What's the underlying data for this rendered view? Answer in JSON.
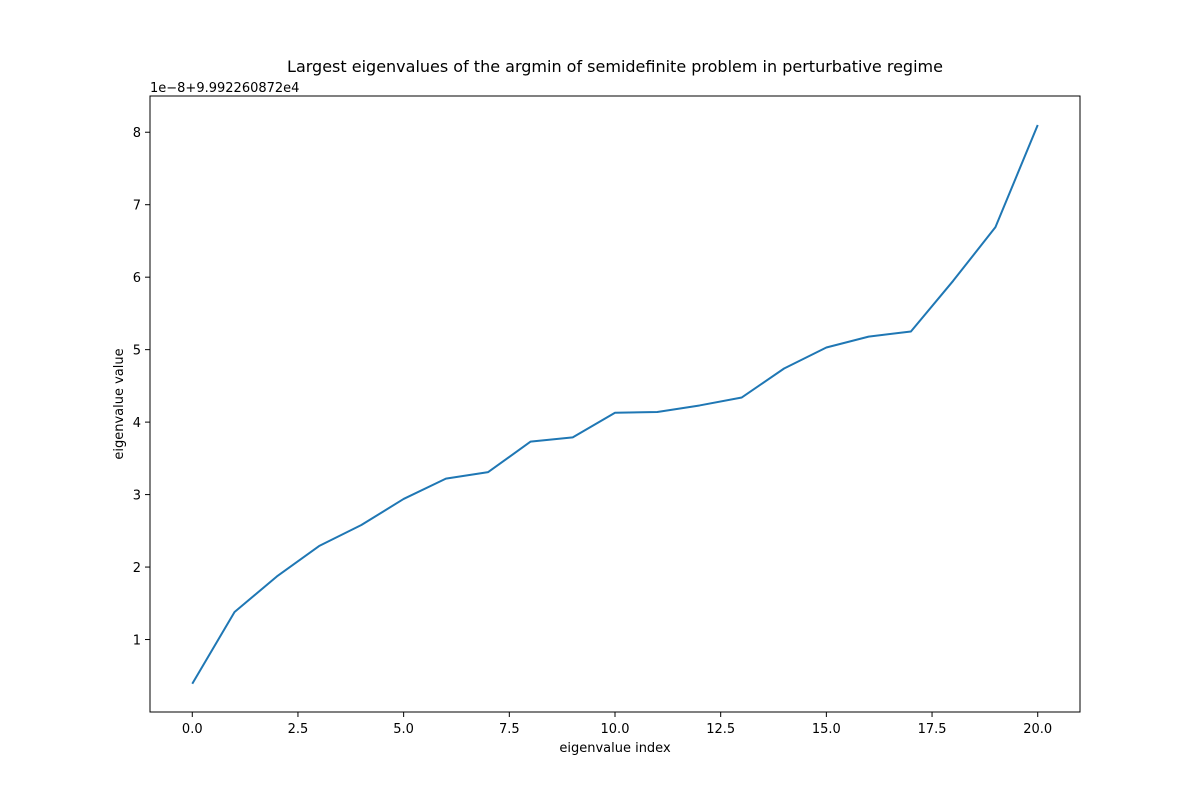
{
  "chart_data": {
    "type": "line",
    "title": "Largest eigenvalues of the argmin of semidefinite problem in perturbative regime",
    "xlabel": "eigenvalue index",
    "ylabel": "eigenvalue value",
    "y_offset_label": "1e−8+9.992260872e4",
    "xlim": [
      -1.0,
      21.0
    ],
    "ylim": [
      0.0,
      8.5
    ],
    "x_ticks": [
      0.0,
      2.5,
      5.0,
      7.5,
      10.0,
      12.5,
      15.0,
      17.5,
      20.0
    ],
    "x_tick_labels": [
      "0.0",
      "2.5",
      "5.0",
      "7.5",
      "10.0",
      "12.5",
      "15.0",
      "17.5",
      "20.0"
    ],
    "y_ticks": [
      1,
      2,
      3,
      4,
      5,
      6,
      7,
      8
    ],
    "y_tick_labels": [
      "1",
      "2",
      "3",
      "4",
      "5",
      "6",
      "7",
      "8"
    ],
    "grid": false,
    "series": [
      {
        "color": "#1f77b4",
        "x": [
          0,
          1,
          2,
          3,
          4,
          5,
          6,
          7,
          8,
          9,
          10,
          11,
          12,
          13,
          14,
          15,
          16,
          17,
          18,
          19,
          20
        ],
        "values": [
          0.39,
          1.38,
          1.87,
          2.29,
          2.58,
          2.94,
          3.22,
          3.31,
          3.73,
          3.79,
          4.13,
          4.14,
          4.23,
          4.34,
          4.74,
          5.03,
          5.18,
          5.25,
          5.95,
          6.69,
          8.1
        ]
      }
    ]
  }
}
